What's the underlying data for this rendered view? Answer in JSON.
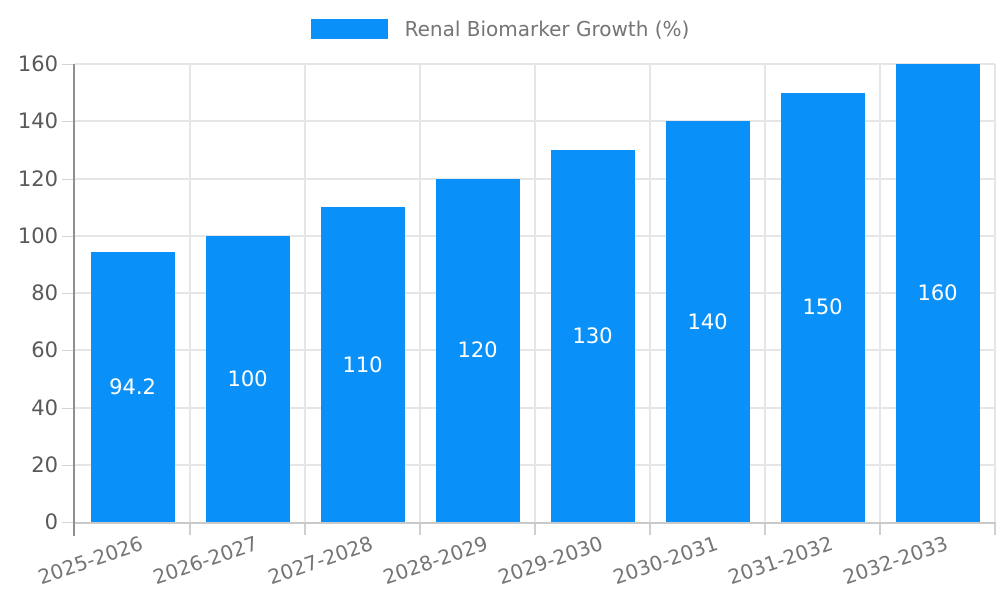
{
  "chart_data": {
    "type": "bar",
    "legend": "Renal Biomarker Growth (%)",
    "legend_position": "top-center",
    "categories": [
      "2025-2026",
      "2026-2027",
      "2027-2028",
      "2028-2029",
      "2029-2030",
      "2030-2031",
      "2031-2032",
      "2032-2033"
    ],
    "values": [
      94.2,
      100,
      110,
      120,
      130,
      140,
      150,
      160
    ],
    "value_labels": [
      "94.2",
      "100",
      "110",
      "120",
      "130",
      "140",
      "150",
      "160"
    ],
    "ylim": [
      0,
      160
    ],
    "yticks": [
      0,
      20,
      40,
      60,
      80,
      100,
      120,
      140,
      160
    ],
    "grid": true,
    "xlabel": "",
    "ylabel": "",
    "bar_color": "#0991f9",
    "bar_value_label_color": "#ffffff",
    "ytick_label_color": "#595959",
    "xtick_label_color": "#757575"
  }
}
